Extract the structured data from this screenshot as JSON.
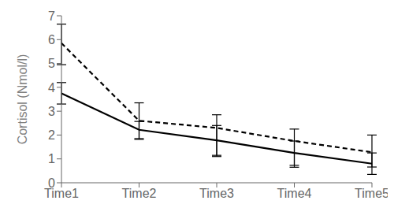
{
  "chart_data": {
    "type": "line",
    "categories": [
      "Time1",
      "Time2",
      "Time3",
      "Time4",
      "Time5"
    ],
    "ylabel": "Cortisol (Nmol/l)",
    "ylim": [
      0,
      7
    ],
    "yticks": [
      0,
      1,
      2,
      3,
      4,
      5,
      6,
      7
    ],
    "grid": false,
    "series": [
      {
        "color": "#000000",
        "line_style": "solid",
        "values": [
          3.75,
          2.22,
          1.78,
          1.25,
          0.8
        ],
        "error_lo": [
          0.45,
          0.4,
          0.68,
          0.52,
          0.45
        ],
        "error_hi": [
          0.45,
          0.35,
          0.62,
          0.5,
          0.45
        ]
      },
      {
        "color": "#000000",
        "line_style": "dashed",
        "values": [
          5.85,
          2.6,
          2.3,
          1.75,
          1.28
        ],
        "error_lo": [
          0.9,
          0.75,
          1.15,
          1.1,
          0.62
        ],
        "error_hi": [
          0.8,
          0.75,
          0.55,
          0.5,
          0.72
        ]
      }
    ]
  }
}
